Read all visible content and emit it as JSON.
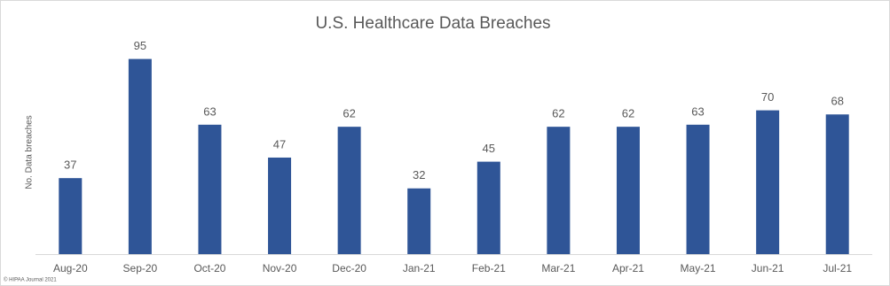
{
  "chart_data": {
    "type": "bar",
    "title": "U.S. Healthcare Data Breaches",
    "y_label": "No. Data breaches",
    "source": "© HIPAA Journal 2021",
    "categories": [
      "Aug-20",
      "Sep-20",
      "Oct-20",
      "Nov-20",
      "Dec-20",
      "Jan-21",
      "Feb-21",
      "Mar-21",
      "Apr-21",
      "May-21",
      "Jun-21",
      "Jul-21"
    ],
    "values": [
      37,
      95,
      63,
      47,
      62,
      32,
      45,
      62,
      62,
      63,
      70,
      68
    ],
    "color": "#2f5597",
    "ylim": [
      0,
      100
    ]
  }
}
